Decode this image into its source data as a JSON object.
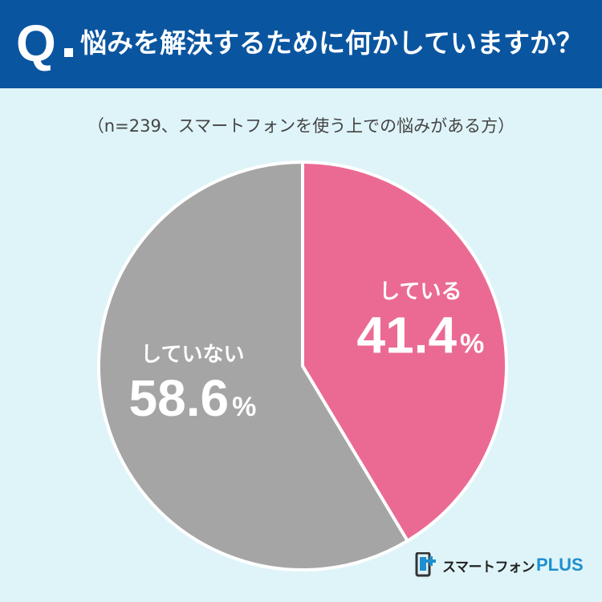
{
  "header": {
    "q_mark": "Q",
    "question": "悩みを解決するために何かしていますか？",
    "background": "#0a55a0"
  },
  "subtitle": "（n=239、スマートフォンを使う上での悩みがある方）",
  "chart_data": {
    "type": "pie",
    "slices": [
      {
        "label": "している",
        "value": 41.4,
        "display": "41.4",
        "unit": "%",
        "color": "#eb6a93"
      },
      {
        "label": "していない",
        "value": 58.6,
        "display": "58.6",
        "unit": "%",
        "color": "#a5a5a5"
      }
    ],
    "start": "top",
    "direction": "clockwise"
  },
  "brand": {
    "name": "スマートフォン",
    "suffix": "PLUS",
    "icon": "smartphone-plus-logo-icon",
    "accent": "#1f8fcf"
  }
}
